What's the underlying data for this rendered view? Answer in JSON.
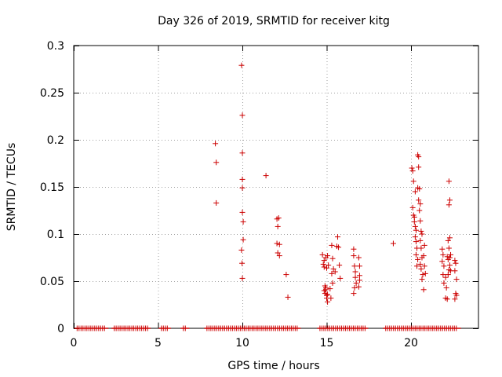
{
  "chart_data": {
    "type": "scatter",
    "title": "Day 326 of 2019, SRMTID for receiver kitg",
    "xlabel": "GPS time / hours",
    "ylabel": "SRMTID / TECUs",
    "xlim": [
      0,
      24
    ],
    "ylim": [
      0,
      0.3
    ],
    "xticks": [
      0,
      5,
      10,
      15,
      20
    ],
    "xtick_labels": [
      "0",
      "5",
      "10",
      "15",
      "20"
    ],
    "yticks": [
      0,
      0.05,
      0.1,
      0.15,
      0.2,
      0.25,
      0.3
    ],
    "ytick_labels": [
      "0",
      "0.05",
      "0.1",
      "0.15",
      "0.2",
      "0.25",
      "0.3"
    ],
    "grid": true,
    "marker": "+",
    "series_color": "#cc0000",
    "zero_segments": [
      [
        0.2,
        1.9
      ],
      [
        2.4,
        4.4
      ],
      [
        5.2,
        5.6
      ],
      [
        6.5,
        6.7
      ],
      [
        7.9,
        13.3
      ],
      [
        14.6,
        17.3
      ],
      [
        18.5,
        22.8
      ]
    ],
    "points": [
      [
        8.4,
        0.196
      ],
      [
        8.45,
        0.176
      ],
      [
        8.45,
        0.133
      ],
      [
        9.95,
        0.279
      ],
      [
        10.0,
        0.226
      ],
      [
        10.0,
        0.186
      ],
      [
        10.0,
        0.158
      ],
      [
        10.0,
        0.149
      ],
      [
        10.0,
        0.123
      ],
      [
        10.05,
        0.113
      ],
      [
        10.05,
        0.094
      ],
      [
        9.95,
        0.083
      ],
      [
        9.98,
        0.069
      ],
      [
        10.0,
        0.053
      ],
      [
        11.4,
        0.162
      ],
      [
        12.05,
        0.116
      ],
      [
        12.15,
        0.117
      ],
      [
        12.1,
        0.108
      ],
      [
        12.05,
        0.09
      ],
      [
        12.2,
        0.089
      ],
      [
        12.1,
        0.08
      ],
      [
        12.2,
        0.077
      ],
      [
        12.6,
        0.057
      ],
      [
        12.7,
        0.033
      ],
      [
        14.75,
        0.078
      ],
      [
        14.85,
        0.072
      ],
      [
        14.95,
        0.075
      ],
      [
        14.8,
        0.068
      ],
      [
        14.85,
        0.065
      ],
      [
        15.0,
        0.064
      ],
      [
        15.05,
        0.077
      ],
      [
        15.1,
        0.067
      ],
      [
        14.9,
        0.045
      ],
      [
        14.95,
        0.043
      ],
      [
        14.85,
        0.04
      ],
      [
        14.9,
        0.037
      ],
      [
        15.0,
        0.035
      ],
      [
        15.0,
        0.032
      ],
      [
        15.05,
        0.028
      ],
      [
        14.95,
        0.041
      ],
      [
        15.05,
        0.036
      ],
      [
        15.3,
        0.088
      ],
      [
        15.35,
        0.074
      ],
      [
        15.4,
        0.063
      ],
      [
        15.3,
        0.058
      ],
      [
        15.35,
        0.048
      ],
      [
        15.2,
        0.042
      ],
      [
        15.25,
        0.032
      ],
      [
        15.5,
        0.06
      ],
      [
        15.6,
        0.087
      ],
      [
        15.7,
        0.086
      ],
      [
        15.65,
        0.097
      ],
      [
        15.75,
        0.067
      ],
      [
        15.8,
        0.053
      ],
      [
        16.6,
        0.084
      ],
      [
        16.6,
        0.077
      ],
      [
        16.65,
        0.066
      ],
      [
        16.7,
        0.06
      ],
      [
        16.7,
        0.054
      ],
      [
        16.75,
        0.048
      ],
      [
        16.65,
        0.043
      ],
      [
        16.6,
        0.037
      ],
      [
        16.9,
        0.075
      ],
      [
        16.95,
        0.066
      ],
      [
        16.95,
        0.056
      ],
      [
        16.95,
        0.051
      ],
      [
        16.9,
        0.044
      ],
      [
        18.95,
        0.09
      ],
      [
        20.05,
        0.17
      ],
      [
        20.1,
        0.167
      ],
      [
        20.15,
        0.156
      ],
      [
        20.25,
        0.145
      ],
      [
        20.1,
        0.128
      ],
      [
        20.15,
        0.12
      ],
      [
        20.2,
        0.118
      ],
      [
        20.2,
        0.113
      ],
      [
        20.25,
        0.108
      ],
      [
        20.3,
        0.104
      ],
      [
        20.25,
        0.097
      ],
      [
        20.3,
        0.092
      ],
      [
        20.35,
        0.085
      ],
      [
        20.3,
        0.078
      ],
      [
        20.4,
        0.073
      ],
      [
        20.35,
        0.066
      ],
      [
        20.4,
        0.184
      ],
      [
        20.45,
        0.182
      ],
      [
        20.45,
        0.171
      ],
      [
        20.4,
        0.149
      ],
      [
        20.5,
        0.148
      ],
      [
        20.45,
        0.136
      ],
      [
        20.55,
        0.132
      ],
      [
        20.5,
        0.125
      ],
      [
        20.55,
        0.114
      ],
      [
        20.6,
        0.103
      ],
      [
        20.65,
        0.1
      ],
      [
        20.55,
        0.093
      ],
      [
        20.6,
        0.085
      ],
      [
        20.65,
        0.075
      ],
      [
        20.55,
        0.068
      ],
      [
        20.6,
        0.063
      ],
      [
        20.7,
        0.057
      ],
      [
        20.65,
        0.052
      ],
      [
        20.8,
        0.088
      ],
      [
        20.75,
        0.077
      ],
      [
        20.8,
        0.066
      ],
      [
        20.85,
        0.058
      ],
      [
        20.75,
        0.041
      ],
      [
        21.85,
        0.084
      ],
      [
        21.9,
        0.078
      ],
      [
        21.85,
        0.071
      ],
      [
        21.95,
        0.066
      ],
      [
        21.9,
        0.057
      ],
      [
        21.95,
        0.048
      ],
      [
        22.05,
        0.054
      ],
      [
        22.1,
        0.043
      ],
      [
        22.05,
        0.032
      ],
      [
        22.15,
        0.031
      ],
      [
        22.25,
        0.156
      ],
      [
        22.3,
        0.136
      ],
      [
        22.25,
        0.131
      ],
      [
        22.2,
        0.093
      ],
      [
        22.3,
        0.096
      ],
      [
        22.25,
        0.085
      ],
      [
        22.35,
        0.078
      ],
      [
        22.3,
        0.075
      ],
      [
        22.2,
        0.073
      ],
      [
        22.15,
        0.076
      ],
      [
        22.3,
        0.067
      ],
      [
        22.25,
        0.062
      ],
      [
        22.2,
        0.057
      ],
      [
        22.35,
        0.061
      ],
      [
        22.6,
        0.072
      ],
      [
        22.65,
        0.069
      ],
      [
        22.6,
        0.061
      ],
      [
        22.7,
        0.052
      ],
      [
        22.65,
        0.037
      ],
      [
        22.7,
        0.035
      ],
      [
        22.6,
        0.031
      ]
    ]
  }
}
